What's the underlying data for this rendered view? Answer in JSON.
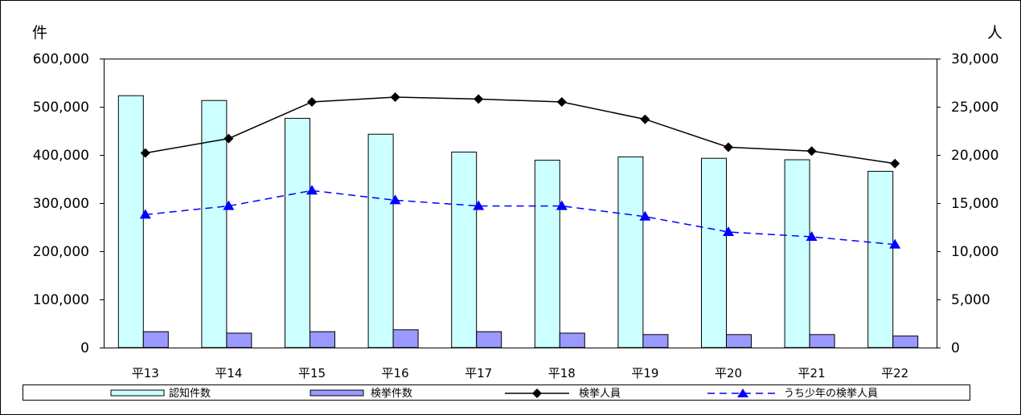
{
  "chart_data": {
    "type": "bar",
    "categories": [
      "平13",
      "平14",
      "平15",
      "平16",
      "平17",
      "平18",
      "平19",
      "平20",
      "平21",
      "平22"
    ],
    "left_axis": {
      "unit_label": "件",
      "ylim": [
        0,
        600000
      ],
      "ticks": [
        "0",
        "100,000",
        "200,000",
        "300,000",
        "400,000",
        "500,000",
        "600,000"
      ]
    },
    "right_axis": {
      "unit_label": "人",
      "ylim": [
        0,
        30000
      ],
      "ticks": [
        "0",
        "5,000",
        "10,000",
        "15,000",
        "20,000",
        "25,000",
        "30,000"
      ]
    },
    "series": [
      {
        "name": "認知件数",
        "type": "bar",
        "axis": "left",
        "color": "#CCFFFF",
        "values": [
          523000,
          513000,
          476000,
          443000,
          406000,
          389000,
          396000,
          393000,
          390000,
          366000
        ]
      },
      {
        "name": "検挙件数",
        "type": "bar",
        "axis": "left",
        "color": "#9999FF",
        "values": [
          33000,
          30000,
          33000,
          37000,
          33000,
          30000,
          27000,
          27000,
          27000,
          24000
        ]
      },
      {
        "name": "検挙人員",
        "type": "line",
        "axis": "right",
        "color": "#000000",
        "marker": "diamond",
        "values": [
          20200,
          21700,
          25500,
          26000,
          25800,
          25500,
          23700,
          20800,
          20400,
          19100
        ]
      },
      {
        "name": "うち少年の検挙人員",
        "type": "line",
        "axis": "right",
        "color": "#0000FF",
        "marker": "triangle",
        "dashed": true,
        "values": [
          13800,
          14700,
          16300,
          15300,
          14700,
          14700,
          13600,
          12000,
          11500,
          10700
        ]
      }
    ],
    "grid": false,
    "legend_position": "bottom"
  }
}
